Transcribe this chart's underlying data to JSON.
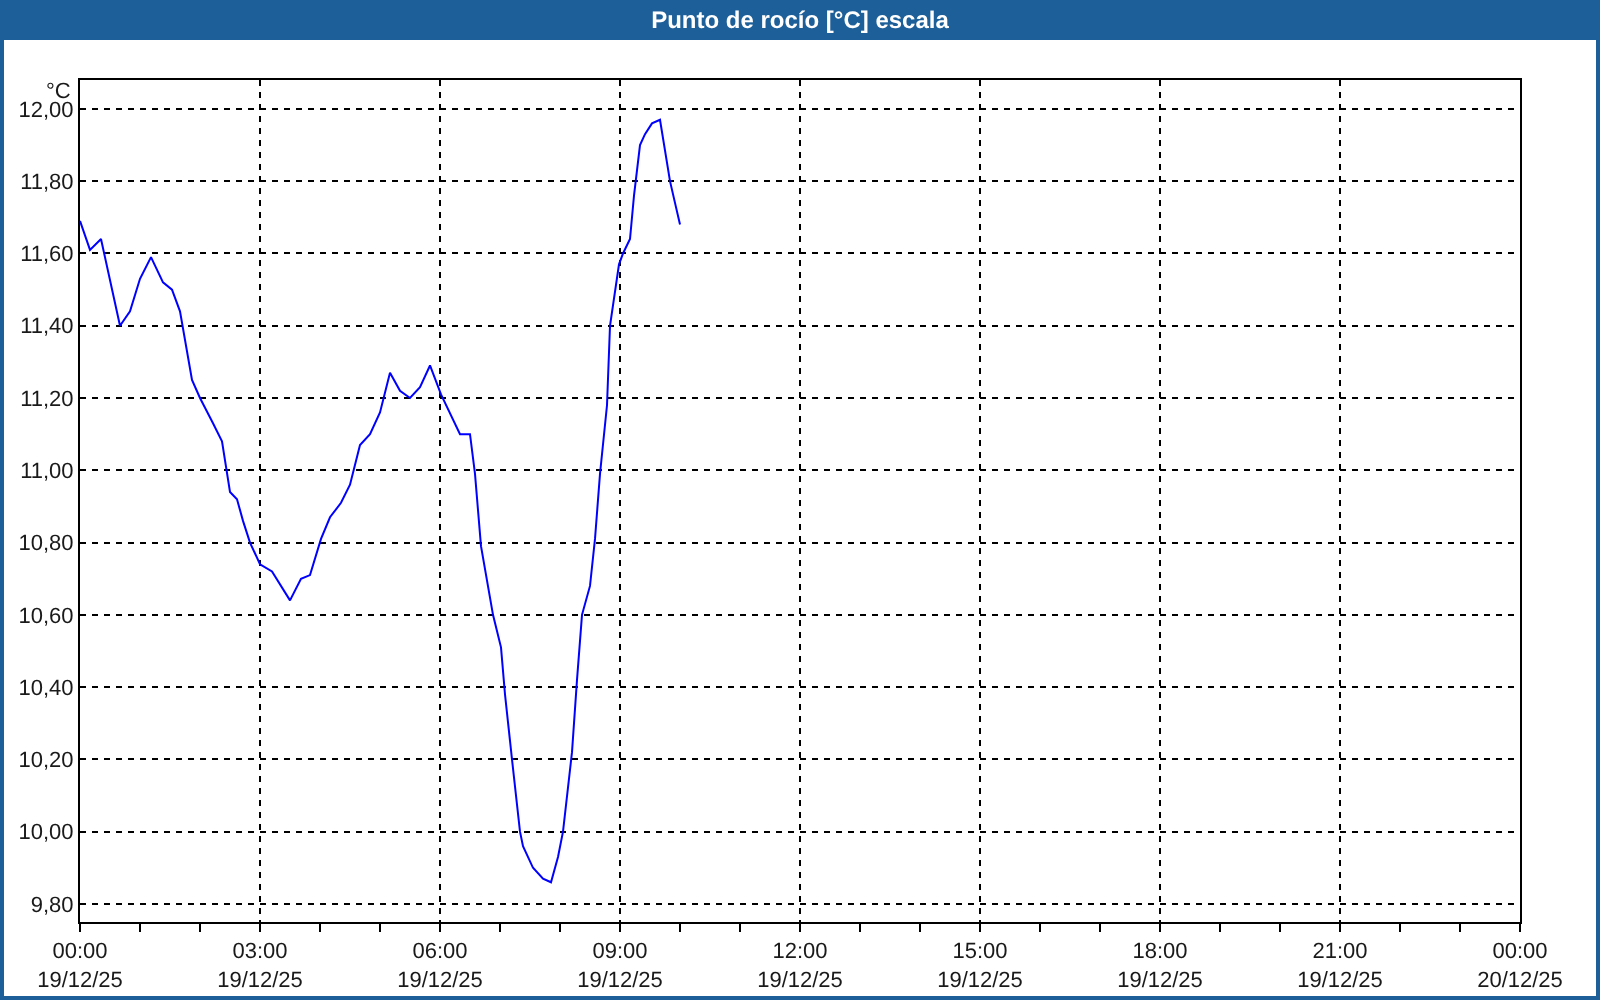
{
  "chart_data": {
    "type": "line",
    "title": "Punto de rocío [°C] escala",
    "ylabel": "°C",
    "x": [
      "--12-19T00:00",
      "--12-19T00:10",
      "--12-19T00:21",
      "--12-19T00:40",
      "--12-19T00:50",
      "--12-19T01:00",
      "--12-19T01:11",
      "--12-19T01:23",
      "--12-19T01:32",
      "--12-19T01:40",
      "--12-19T01:52",
      "--12-19T02:00",
      "--12-19T02:13",
      "--12-19T02:22",
      "--12-19T02:30",
      "--12-19T02:37",
      "--12-19T02:43",
      "--12-19T02:50",
      "--12-19T03:00",
      "--12-19T03:12",
      "--12-19T03:30",
      "--12-19T03:41",
      "--12-19T03:50",
      "--12-19T04:01",
      "--12-19T04:10",
      "--12-19T04:21",
      "--12-19T04:30",
      "--12-19T04:40",
      "--12-19T04:50",
      "--12-19T05:00",
      "--12-19T05:10",
      "--12-19T05:20",
      "--12-19T05:30",
      "--12-19T05:40",
      "--12-19T05:50",
      "--12-19T06:01",
      "--12-19T06:20",
      "--12-19T06:30",
      "--12-19T06:35",
      "--12-19T06:41",
      "--12-19T06:53",
      "--12-19T07:01",
      "--12-19T07:05",
      "--12-19T07:12",
      "--12-19T07:20",
      "--12-19T07:23",
      "--12-19T07:33",
      "--12-19T07:43",
      "--12-19T07:51",
      "--12-19T07:58",
      "--12-19T08:03",
      "--12-19T08:12",
      "--12-19T08:17",
      "--12-19T08:22",
      "--12-19T08:30",
      "--12-19T08:35",
      "--12-19T08:40",
      "--12-19T08:47",
      "--12-19T08:50",
      "--12-19T08:59",
      "--12-19T09:03",
      "--12-19T09:10",
      "--12-19T09:14",
      "--12-19T09:20",
      "--12-19T09:25",
      "--12-19T09:32",
      "--12-19T09:40",
      "--12-19T09:50",
      "--12-19T09:55",
      "--12-19T10:00"
    ],
    "values": [
      11.69,
      11.61,
      11.64,
      11.4,
      11.44,
      11.53,
      11.59,
      11.52,
      11.5,
      11.44,
      11.25,
      11.2,
      11.13,
      11.08,
      10.94,
      10.92,
      10.86,
      10.8,
      10.74,
      10.72,
      10.64,
      10.7,
      10.71,
      10.81,
      10.87,
      10.91,
      10.96,
      11.07,
      11.1,
      11.16,
      11.27,
      11.22,
      11.2,
      11.23,
      11.29,
      11.21,
      11.1,
      11.1,
      10.99,
      10.79,
      10.6,
      10.51,
      10.38,
      10.2,
      10.0,
      9.96,
      9.9,
      9.87,
      9.86,
      9.93,
      10.0,
      10.22,
      10.42,
      10.6,
      10.68,
      10.81,
      10.99,
      11.18,
      11.4,
      11.57,
      11.6,
      11.64,
      11.76,
      11.9,
      11.93,
      11.96,
      11.97,
      11.8,
      11.74,
      11.68
    ],
    "color": "#0000ff",
    "xlim": [
      "--12-19T00:00",
      "--12-20T00:00"
    ],
    "xticks": [
      {
        "value": "--12-19T00:00",
        "label": "00:00\n19/12/25"
      },
      {
        "value": "--12-19T01:00",
        "label": null
      },
      {
        "value": "--12-19T02:00",
        "label": null
      },
      {
        "value": "--12-19T03:00",
        "label": "03:00\n19/12/25"
      },
      {
        "value": "--12-19T04:00",
        "label": null
      },
      {
        "value": "--12-19T05:00",
        "label": null
      },
      {
        "value": "--12-19T06:00",
        "label": "06:00\n19/12/25"
      },
      {
        "value": "--12-19T07:00",
        "label": null
      },
      {
        "value": "--12-19T08:00",
        "label": null
      },
      {
        "value": "--12-19T09:00",
        "label": "09:00\n19/12/25"
      },
      {
        "value": "--12-19T10:00",
        "label": null
      },
      {
        "value": "--12-19T11:00",
        "label": null
      },
      {
        "value": "--12-19T12:00",
        "label": "12:00\n19/12/25"
      },
      {
        "value": "--12-19T13:00",
        "label": null
      },
      {
        "value": "--12-19T14:00",
        "label": null
      },
      {
        "value": "--12-19T15:00",
        "label": "15:00\n19/12/25"
      },
      {
        "value": "--12-19T16:00",
        "label": null
      },
      {
        "value": "--12-19T17:00",
        "label": null
      },
      {
        "value": "--12-19T18:00",
        "label": "18:00\n19/12/25"
      },
      {
        "value": "--12-19T19:00",
        "label": null
      },
      {
        "value": "--12-19T20:00",
        "label": null
      },
      {
        "value": "--12-19T21:00",
        "label": "21:00\n19/12/25"
      },
      {
        "value": "--12-19T22:00",
        "label": null
      },
      {
        "value": "--12-19T23:00",
        "label": null
      },
      {
        "value": "--12-20T00:00",
        "label": "00:00\n20/12/25"
      }
    ],
    "ylim": [
      9.75,
      12.08
    ],
    "yticks": [
      {
        "value": 9.8,
        "label": "9,80"
      },
      {
        "value": 10.0,
        "label": "10,00"
      },
      {
        "value": 10.2,
        "label": "10,20"
      },
      {
        "value": 10.4,
        "label": "10,40"
      },
      {
        "value": 10.6,
        "label": "10,60"
      },
      {
        "value": 10.8,
        "label": "10,80"
      },
      {
        "value": 11.0,
        "label": "11,00"
      },
      {
        "value": 11.2,
        "label": "11,20"
      },
      {
        "value": 11.4,
        "label": "11,40"
      },
      {
        "value": 11.6,
        "label": "11,60"
      },
      {
        "value": 11.8,
        "label": "11,80"
      },
      {
        "value": 12.0,
        "label": "12,00"
      }
    ],
    "grid": true,
    "line_style": "solid"
  }
}
